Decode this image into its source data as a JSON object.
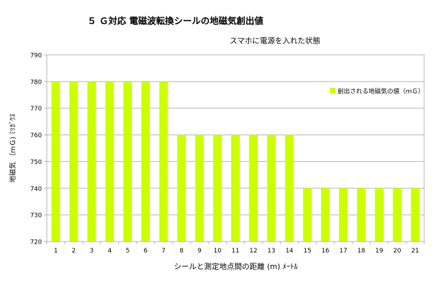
{
  "chart_data": {
    "type": "bar",
    "title": "５ Ｇ対応 電磁波転換シールの地磁気創出値",
    "subtitle": "スマホに電源を入れた状態",
    "xlabel": "シールと測定地点間の距離 (m) ﾒｰﾄﾙ",
    "ylabel": "地磁気 （ｍＧ) ﾐﾘｶﾞｳｽ",
    "categories": [
      "1",
      "2",
      "3",
      "4",
      "5",
      "6",
      "7",
      "8",
      "9",
      "10",
      "11",
      "12",
      "13",
      "14",
      "15",
      "16",
      "17",
      "18",
      "19",
      "20",
      "21"
    ],
    "series": [
      {
        "name": "創出される地磁気の値（ｍＧ）",
        "values": [
          780,
          780,
          780,
          780,
          780,
          780,
          780,
          760,
          760,
          760,
          760,
          760,
          760,
          760,
          740,
          740,
          740,
          740,
          740,
          740,
          740
        ],
        "color": "#ccff00"
      }
    ],
    "ylim": [
      720,
      790
    ],
    "yticks": [
      720,
      730,
      740,
      750,
      760,
      770,
      780,
      790
    ],
    "grid": true,
    "legend": "right"
  }
}
